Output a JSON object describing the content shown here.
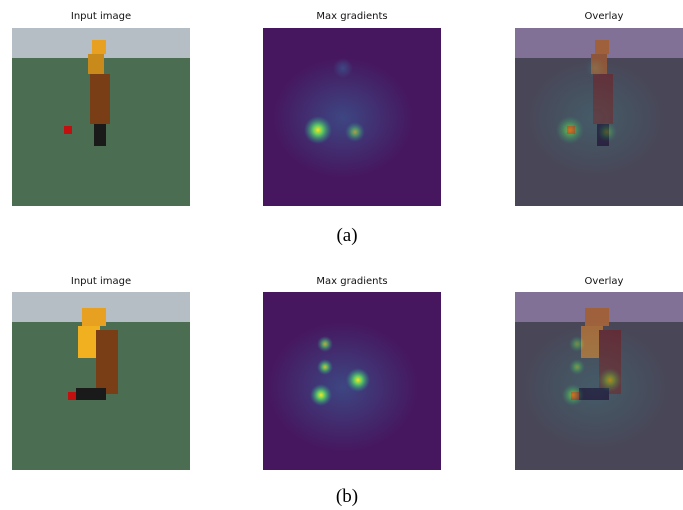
{
  "rows": [
    {
      "label": "(a)",
      "titles": [
        "Input image",
        "Max gradients",
        "Overlay"
      ]
    },
    {
      "label": "(b)",
      "titles": [
        "Input image",
        "Max gradients",
        "Overlay"
      ]
    }
  ]
}
